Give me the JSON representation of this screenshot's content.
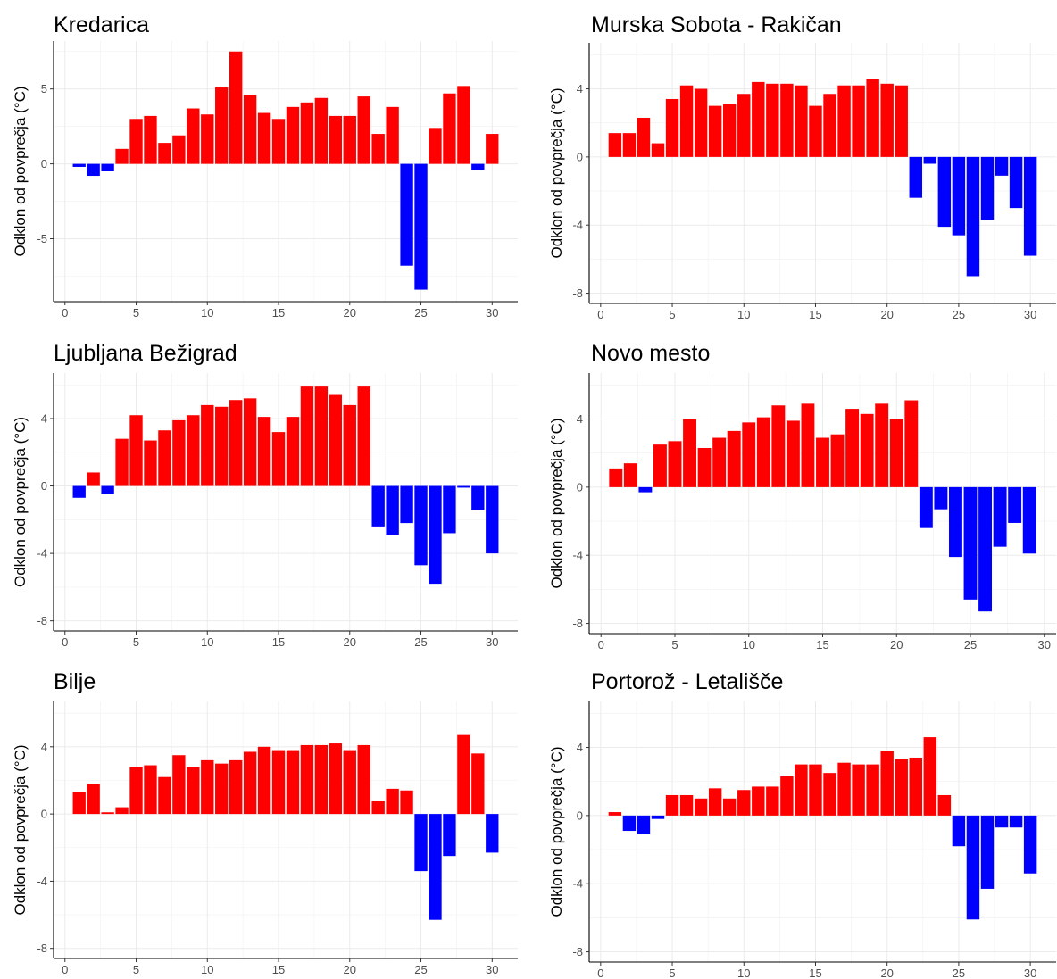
{
  "colors": {
    "positive": "#ff0000",
    "negative": "#0000ff",
    "grid": "#ebebeb",
    "axis": "#000000"
  },
  "chart_data": [
    {
      "type": "bar",
      "title": "Kredarica",
      "ylabel": "Odklon od povprečja (°C)",
      "xlabel": "",
      "x_ticks": [
        0,
        5,
        10,
        15,
        20,
        25,
        30
      ],
      "y_ticks": [
        -5,
        0,
        5
      ],
      "xlim": [
        -0.8,
        31.8
      ],
      "ylim": [
        -9.2,
        8.2
      ],
      "grid": true,
      "x": [
        1,
        2,
        3,
        4,
        5,
        6,
        7,
        8,
        9,
        10,
        11,
        12,
        13,
        14,
        15,
        16,
        17,
        18,
        19,
        20,
        21,
        22,
        23,
        24,
        25,
        26,
        27,
        28,
        29,
        30
      ],
      "values": [
        -0.2,
        -0.8,
        -0.5,
        1.0,
        3.0,
        3.2,
        1.4,
        1.9,
        3.7,
        3.3,
        5.1,
        7.5,
        4.6,
        3.4,
        3.0,
        3.8,
        4.1,
        4.4,
        3.2,
        3.2,
        4.5,
        2.0,
        3.8,
        -6.8,
        -8.4,
        2.4,
        4.7,
        5.2,
        -0.4,
        2.0
      ]
    },
    {
      "type": "bar",
      "title": "Murska Sobota - Rakičan",
      "ylabel": "Odklon od povprečja (°C)",
      "xlabel": "",
      "x_ticks": [
        0,
        5,
        10,
        15,
        20,
        25,
        30
      ],
      "y_ticks": [
        -8,
        -4,
        0,
        4
      ],
      "xlim": [
        -0.8,
        31.8
      ],
      "ylim": [
        -8.6,
        6.7
      ],
      "grid": true,
      "x": [
        1,
        2,
        3,
        4,
        5,
        6,
        7,
        8,
        9,
        10,
        11,
        12,
        13,
        14,
        15,
        16,
        17,
        18,
        19,
        20,
        21,
        22,
        23,
        24,
        25,
        26,
        27,
        28,
        29,
        30
      ],
      "values": [
        1.4,
        1.4,
        2.3,
        0.8,
        3.4,
        4.2,
        4.0,
        3.0,
        3.1,
        3.7,
        4.4,
        4.3,
        4.3,
        4.2,
        3.0,
        3.7,
        4.2,
        4.2,
        4.6,
        4.3,
        4.2,
        -2.4,
        -0.4,
        -4.1,
        -4.6,
        -7.0,
        -3.7,
        -1.1,
        -3.0,
        -5.8
      ]
    },
    {
      "type": "bar",
      "title": "Ljubljana Bežigrad",
      "ylabel": "Odklon od povprečja (°C)",
      "xlabel": "",
      "x_ticks": [
        0,
        5,
        10,
        15,
        20,
        25,
        30
      ],
      "y_ticks": [
        -8,
        -4,
        0,
        4
      ],
      "xlim": [
        -0.8,
        31.8
      ],
      "ylim": [
        -8.6,
        6.7
      ],
      "grid": true,
      "x": [
        1,
        2,
        3,
        4,
        5,
        6,
        7,
        8,
        9,
        10,
        11,
        12,
        13,
        14,
        15,
        16,
        17,
        18,
        19,
        20,
        21,
        22,
        23,
        24,
        25,
        26,
        27,
        28,
        29,
        30
      ],
      "values": [
        -0.7,
        0.8,
        -0.5,
        2.8,
        4.2,
        2.7,
        3.3,
        3.9,
        4.2,
        4.8,
        4.7,
        5.1,
        5.2,
        4.1,
        3.2,
        4.1,
        5.9,
        5.9,
        5.4,
        4.8,
        5.9,
        -2.4,
        -2.9,
        -2.2,
        -4.7,
        -5.8,
        -2.8,
        -0.1,
        -1.4,
        -4.0
      ]
    },
    {
      "type": "bar",
      "title": "Novo mesto",
      "ylabel": "Odklon od povprečja (°C)",
      "xlabel": "",
      "x_ticks": [
        0,
        5,
        10,
        15,
        20,
        25,
        30
      ],
      "y_ticks": [
        -8,
        -4,
        0,
        4
      ],
      "xlim": [
        -0.8,
        30.8
      ],
      "ylim": [
        -8.6,
        6.7
      ],
      "grid": true,
      "x": [
        1,
        2,
        3,
        4,
        5,
        6,
        7,
        8,
        9,
        10,
        11,
        12,
        13,
        14,
        15,
        16,
        17,
        18,
        19,
        20,
        21,
        22,
        23,
        24,
        25,
        26,
        27,
        28,
        29
      ],
      "values": [
        1.1,
        1.4,
        -0.3,
        2.5,
        2.7,
        4.0,
        2.3,
        2.9,
        3.3,
        3.8,
        4.1,
        4.8,
        3.9,
        4.9,
        2.9,
        3.1,
        4.6,
        4.3,
        4.9,
        4.0,
        5.1,
        -2.4,
        -1.3,
        -4.1,
        -6.6,
        -7.3,
        -3.5,
        -2.1,
        -3.9
      ]
    },
    {
      "type": "bar",
      "title": "Bilje",
      "ylabel": "Odklon od povprečja (°C)",
      "xlabel": "",
      "x_ticks": [
        0,
        5,
        10,
        15,
        20,
        25,
        30
      ],
      "y_ticks": [
        -8,
        -4,
        0,
        4
      ],
      "xlim": [
        -0.8,
        31.8
      ],
      "ylim": [
        -8.6,
        6.7
      ],
      "grid": true,
      "x": [
        1,
        2,
        3,
        4,
        5,
        6,
        7,
        8,
        9,
        10,
        11,
        12,
        13,
        14,
        15,
        16,
        17,
        18,
        19,
        20,
        21,
        22,
        23,
        24,
        25,
        26,
        27,
        28,
        29,
        30
      ],
      "values": [
        1.3,
        1.8,
        0.1,
        0.4,
        2.8,
        2.9,
        2.2,
        3.5,
        2.8,
        3.2,
        3.0,
        3.2,
        3.7,
        4.0,
        3.8,
        3.8,
        4.1,
        4.1,
        4.2,
        3.8,
        4.1,
        0.8,
        1.5,
        1.4,
        -3.4,
        -6.3,
        -2.5,
        4.7,
        3.6,
        -2.3
      ]
    },
    {
      "type": "bar",
      "title": "Portorož - Letališče",
      "ylabel": "Odklon od povprečja (°C)",
      "xlabel": "",
      "x_ticks": [
        0,
        5,
        10,
        15,
        20,
        25,
        30
      ],
      "y_ticks": [
        -8,
        -4,
        0,
        4
      ],
      "xlim": [
        -0.8,
        31.8
      ],
      "ylim": [
        -8.6,
        6.7
      ],
      "grid": true,
      "x": [
        1,
        2,
        3,
        4,
        5,
        6,
        7,
        8,
        9,
        10,
        11,
        12,
        13,
        14,
        15,
        16,
        17,
        18,
        19,
        20,
        21,
        22,
        23,
        24,
        25,
        26,
        27,
        28,
        29,
        30
      ],
      "values": [
        0.2,
        -0.9,
        -1.1,
        -0.2,
        1.2,
        1.2,
        1.0,
        1.6,
        1.0,
        1.5,
        1.7,
        1.7,
        2.3,
        3.0,
        3.0,
        2.5,
        3.1,
        3.0,
        3.0,
        3.8,
        3.3,
        3.4,
        4.6,
        1.2,
        -1.8,
        -6.1,
        -4.3,
        -0.7,
        -0.7,
        -3.4
      ]
    }
  ]
}
